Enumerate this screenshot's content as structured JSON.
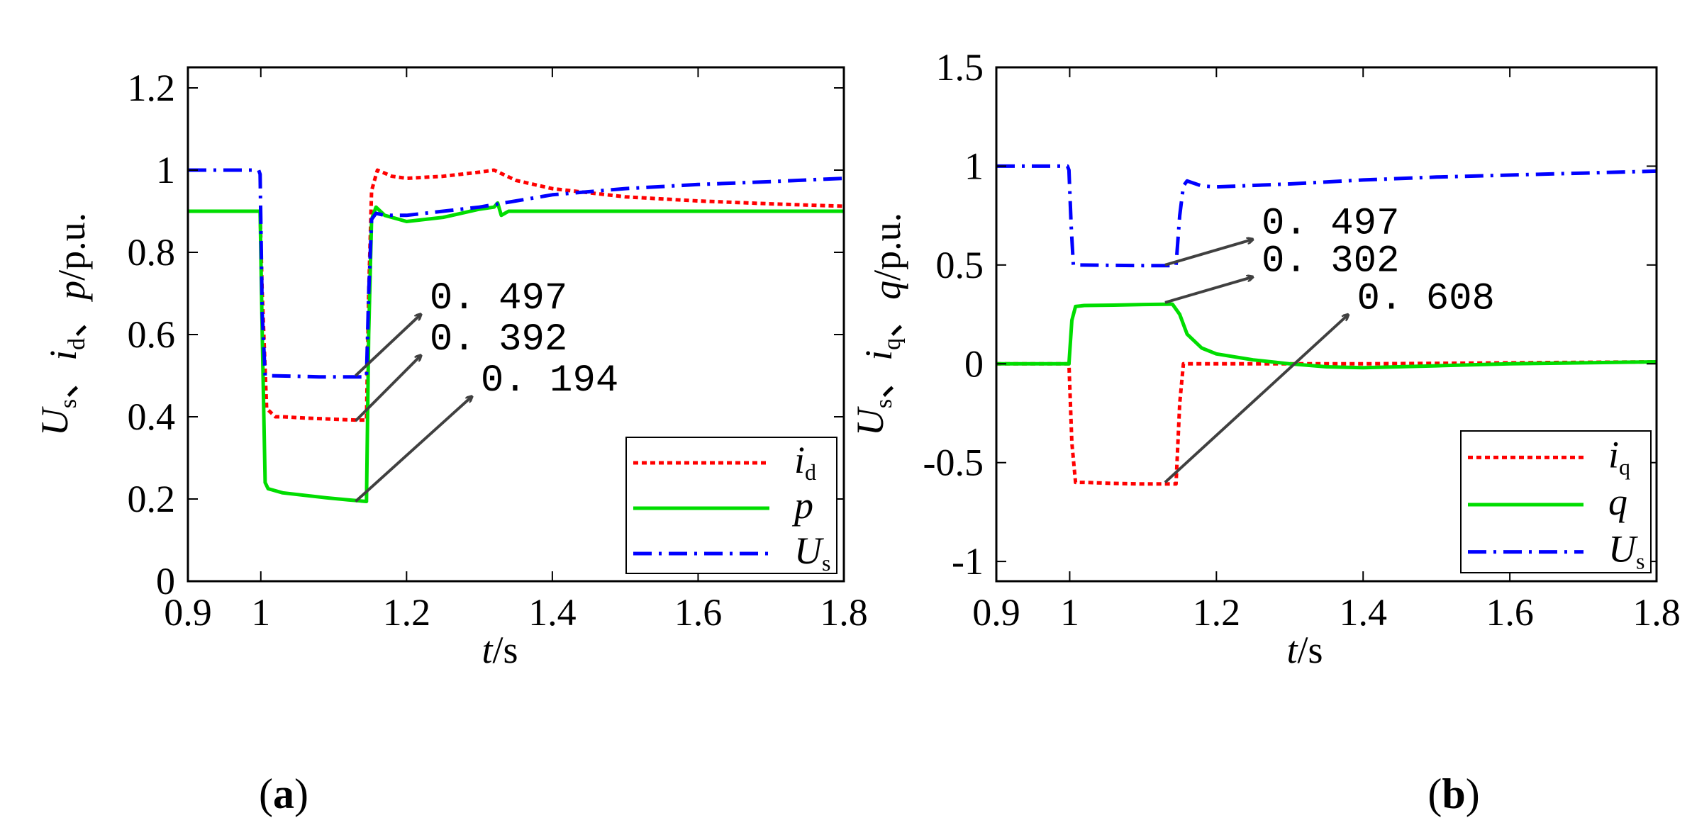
{
  "chart_data": [
    {
      "id": "a",
      "type": "line",
      "panel_label": "a",
      "xlabel": {
        "var": "t",
        "unit": "/s"
      },
      "ylabel": {
        "parts": [
          {
            "text": "U",
            "italic": true,
            "sub": "s"
          },
          {
            "text": "、",
            "italic": false
          },
          {
            "text": "i",
            "italic": true,
            "sub": "d"
          },
          {
            "text": "、",
            "italic": false
          },
          {
            "text": "p",
            "italic": true
          },
          {
            "text": "/p.u.",
            "italic": false
          }
        ]
      },
      "xlim": [
        0.9,
        1.8
      ],
      "ylim": [
        0,
        1.25
      ],
      "xticks": [
        "0.9",
        "1",
        "1.2",
        "1.4",
        "1.6",
        "1.8"
      ],
      "xtick_values": [
        0.9,
        1.0,
        1.2,
        1.4,
        1.6,
        1.8
      ],
      "yticks": [
        "0",
        "0.2",
        "0.4",
        "0.6",
        "0.8",
        "1",
        "1.2"
      ],
      "ytick_values": [
        0,
        0.2,
        0.4,
        0.6,
        0.8,
        1.0,
        1.2
      ],
      "series": [
        {
          "name": "id",
          "label": "i",
          "label_sub": "d",
          "color": "#ff0000",
          "style": "dotted",
          "x": [
            0.9,
            0.999,
            1.002,
            1.008,
            1.02,
            1.03,
            1.06,
            1.1,
            1.13,
            1.145,
            1.148,
            1.152,
            1.16,
            1.18,
            1.2,
            1.25,
            1.3,
            1.32,
            1.35,
            1.4,
            1.5,
            1.6,
            1.7,
            1.8
          ],
          "y": [
            0.9,
            0.9,
            0.7,
            0.42,
            0.4,
            0.4,
            0.397,
            0.394,
            0.392,
            0.392,
            0.7,
            0.95,
            1.0,
            0.985,
            0.98,
            0.985,
            0.995,
            1.0,
            0.975,
            0.955,
            0.935,
            0.925,
            0.918,
            0.912
          ]
        },
        {
          "name": "p",
          "label": "p",
          "color": "#00dd00",
          "style": "solid",
          "x": [
            0.9,
            0.999,
            1.002,
            1.006,
            1.01,
            1.03,
            1.06,
            1.09,
            1.12,
            1.145,
            1.148,
            1.152,
            1.158,
            1.17,
            1.2,
            1.25,
            1.3,
            1.32,
            1.325,
            1.33,
            1.34,
            1.4,
            1.6,
            1.8
          ],
          "y": [
            0.9,
            0.9,
            0.6,
            0.24,
            0.225,
            0.215,
            0.209,
            0.203,
            0.198,
            0.194,
            0.6,
            0.88,
            0.91,
            0.89,
            0.875,
            0.885,
            0.905,
            0.91,
            0.92,
            0.89,
            0.9,
            0.9,
            0.9,
            0.9
          ]
        },
        {
          "name": "Us",
          "label": "U",
          "label_sub": "s",
          "color": "#0000ff",
          "style": "dashdot",
          "x": [
            0.9,
            0.997,
            0.999,
            1.002,
            1.006,
            1.01,
            1.04,
            1.08,
            1.145,
            1.148,
            1.152,
            1.158,
            1.17,
            1.2,
            1.3,
            1.4,
            1.5,
            1.6,
            1.7,
            1.8
          ],
          "y": [
            1.0,
            1.0,
            0.99,
            0.65,
            0.5,
            0.5,
            0.499,
            0.497,
            0.497,
            0.7,
            0.88,
            0.895,
            0.89,
            0.89,
            0.91,
            0.94,
            0.955,
            0.965,
            0.972,
            0.98
          ]
        }
      ],
      "annotations": [
        {
          "text": "0. 497",
          "from": [
            1.13,
            0.5
          ],
          "to": [
            1.22,
            0.65
          ]
        },
        {
          "text": "0. 392",
          "from": [
            1.13,
            0.39
          ],
          "to": [
            1.22,
            0.55
          ]
        },
        {
          "text": "0. 194",
          "from": [
            1.13,
            0.194
          ],
          "to": [
            1.29,
            0.45
          ]
        }
      ],
      "legend": "bottom-right"
    },
    {
      "id": "b",
      "type": "line",
      "panel_label": "b",
      "xlabel": {
        "var": "t",
        "unit": "/s"
      },
      "ylabel": {
        "parts": [
          {
            "text": "U",
            "italic": true,
            "sub": "s"
          },
          {
            "text": "、",
            "italic": false
          },
          {
            "text": "i",
            "italic": true,
            "sub": "q"
          },
          {
            "text": "、",
            "italic": false
          },
          {
            "text": "q",
            "italic": true
          },
          {
            "text": "/p.u.",
            "italic": false
          }
        ]
      },
      "xlim": [
        0.9,
        1.8
      ],
      "ylim": [
        -1.1,
        1.5
      ],
      "xticks": [
        "0.9",
        "1",
        "1.2",
        "1.4",
        "1.6",
        "1.8"
      ],
      "xtick_values": [
        0.9,
        1.0,
        1.2,
        1.4,
        1.6,
        1.8
      ],
      "yticks": [
        "-1",
        "-0.5",
        "0",
        "0.5",
        "1",
        "1.5"
      ],
      "ytick_values": [
        -1,
        -0.5,
        0,
        0.5,
        1.0,
        1.5
      ],
      "series": [
        {
          "name": "iq",
          "label": "i",
          "label_sub": "q",
          "color": "#ff0000",
          "style": "dotted",
          "x": [
            0.9,
            0.999,
            1.003,
            1.008,
            1.02,
            1.06,
            1.1,
            1.13,
            1.145,
            1.15,
            1.155,
            1.16,
            1.2,
            1.4,
            1.6,
            1.8
          ],
          "y": [
            0.0,
            0.0,
            -0.4,
            -0.6,
            -0.6,
            -0.605,
            -0.608,
            -0.608,
            -0.608,
            -0.2,
            0.0,
            0.0,
            0.0,
            0.0,
            0.005,
            0.01
          ]
        },
        {
          "name": "q",
          "label": "q",
          "color": "#00dd00",
          "style": "solid",
          "x": [
            0.9,
            0.999,
            1.003,
            1.008,
            1.02,
            1.06,
            1.1,
            1.14,
            1.15,
            1.16,
            1.18,
            1.2,
            1.25,
            1.3,
            1.35,
            1.4,
            1.5,
            1.6,
            1.7,
            1.8
          ],
          "y": [
            0.0,
            0.0,
            0.22,
            0.29,
            0.295,
            0.297,
            0.3,
            0.302,
            0.25,
            0.15,
            0.08,
            0.05,
            0.02,
            0.0,
            -0.015,
            -0.02,
            -0.01,
            0.0,
            0.005,
            0.01
          ]
        },
        {
          "name": "Us",
          "label": "U",
          "label_sub": "s",
          "color": "#0000ff",
          "style": "dashdot",
          "x": [
            0.9,
            0.997,
            0.999,
            1.002,
            1.005,
            1.01,
            1.06,
            1.1,
            1.145,
            1.15,
            1.155,
            1.16,
            1.18,
            1.2,
            1.3,
            1.4,
            1.5,
            1.6,
            1.7,
            1.8
          ],
          "y": [
            1.0,
            1.0,
            0.98,
            0.7,
            0.5,
            0.5,
            0.498,
            0.497,
            0.497,
            0.75,
            0.9,
            0.925,
            0.9,
            0.895,
            0.91,
            0.93,
            0.945,
            0.955,
            0.965,
            0.975
          ]
        }
      ],
      "annotations": [
        {
          "text": "0. 497",
          "from": [
            1.13,
            0.5
          ],
          "to": [
            1.25,
            0.63
          ]
        },
        {
          "text": "0. 302",
          "from": [
            1.13,
            0.31
          ],
          "to": [
            1.25,
            0.44
          ]
        },
        {
          "text": "0. 608",
          "from": [
            1.13,
            -0.6
          ],
          "to": [
            1.38,
            0.25
          ]
        }
      ],
      "legend": "bottom-right"
    }
  ]
}
